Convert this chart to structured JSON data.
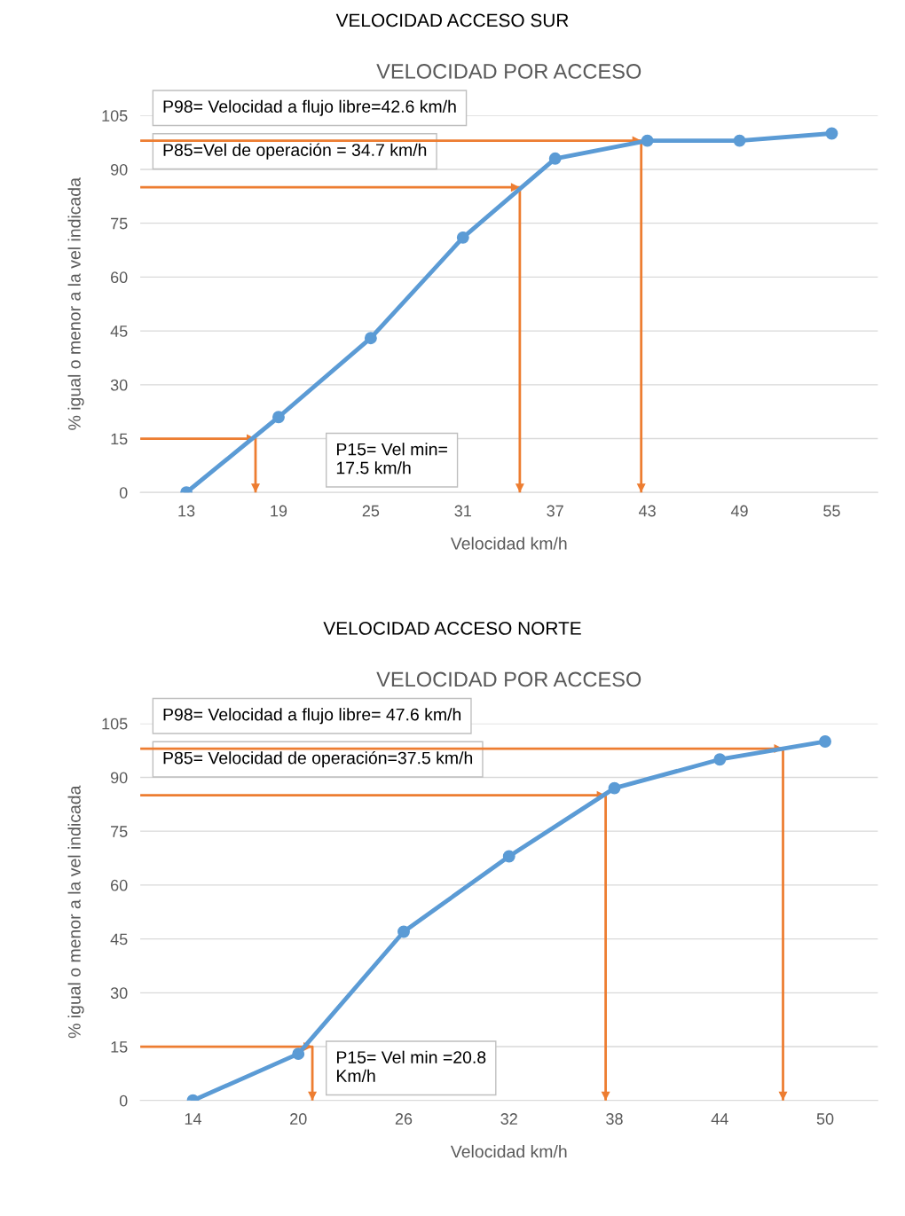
{
  "chart_data": [
    {
      "type": "line",
      "title": "VELOCIDAD ACCESO SUR",
      "subtitle": "VELOCIDAD POR ACCESO",
      "xlabel": "Velocidad km/h",
      "ylabel": "% igual o menor a la vel indicada",
      "x": [
        13,
        19,
        25,
        31,
        37,
        43,
        49,
        55
      ],
      "series": [
        {
          "color": "#5b9bd5",
          "values": [
            0,
            21,
            43,
            71,
            93,
            98,
            98,
            100
          ]
        },
        {
          "color": "#ed7d31",
          "marker": "none",
          "x": [
            10,
            42.6,
            42.6
          ],
          "values": [
            98,
            98,
            0
          ]
        },
        {
          "color": "#ed7d31",
          "marker": "none",
          "x": [
            10,
            34.7,
            34.7
          ],
          "values": [
            85,
            85,
            0
          ]
        },
        {
          "color": "#ed7d31",
          "marker": "none",
          "x": [
            10,
            17.5,
            17.5
          ],
          "values": [
            15,
            15,
            0
          ]
        }
      ],
      "xlim": [
        10,
        58
      ],
      "xticks": [
        13,
        19,
        25,
        31,
        37,
        43,
        49,
        55
      ],
      "ylim": [
        0,
        105
      ],
      "yticks": [
        0,
        15,
        30,
        45,
        60,
        75,
        90,
        105
      ],
      "grid": "y",
      "marker": "circle",
      "line_style": "solid",
      "legend": false,
      "annotations": [
        "P98= Velocidad a flujo libre=42.6 km/h",
        "P85=Vel de operación = 34.7 km/h",
        "P15= Vel min=\n17.5 km/h"
      ]
    },
    {
      "type": "line",
      "title": "VELOCIDAD ACCESO NORTE",
      "subtitle": "VELOCIDAD POR ACCESO",
      "xlabel": "Velocidad km/h",
      "ylabel": "% igual o menor a la vel indicada",
      "x": [
        14,
        20,
        26,
        32,
        38,
        44,
        50
      ],
      "series": [
        {
          "color": "#5b9bd5",
          "values": [
            0,
            13,
            47,
            68,
            87,
            95,
            100
          ]
        },
        {
          "color": "#ed7d31",
          "marker": "none",
          "x": [
            11,
            47.6,
            47.6
          ],
          "values": [
            98,
            98,
            0
          ]
        },
        {
          "color": "#ed7d31",
          "marker": "none",
          "x": [
            11,
            37.5,
            37.5
          ],
          "values": [
            85,
            85,
            0
          ]
        },
        {
          "color": "#ed7d31",
          "marker": "none",
          "x": [
            11,
            20.8,
            20.8
          ],
          "values": [
            15,
            15,
            0
          ]
        }
      ],
      "xlim": [
        11,
        53
      ],
      "xticks": [
        14,
        20,
        26,
        32,
        38,
        44,
        50
      ],
      "ylim": [
        0,
        105
      ],
      "yticks": [
        0,
        15,
        30,
        45,
        60,
        75,
        90,
        105
      ],
      "grid": "y",
      "marker": "circle",
      "line_style": "solid",
      "legend": false,
      "annotations": [
        "P98= Velocidad a flujo libre= 47.6 km/h",
        "P85= Velocidad de operación=37.5 km/h",
        "P15= Vel min =20.8\nKm/h"
      ]
    }
  ]
}
